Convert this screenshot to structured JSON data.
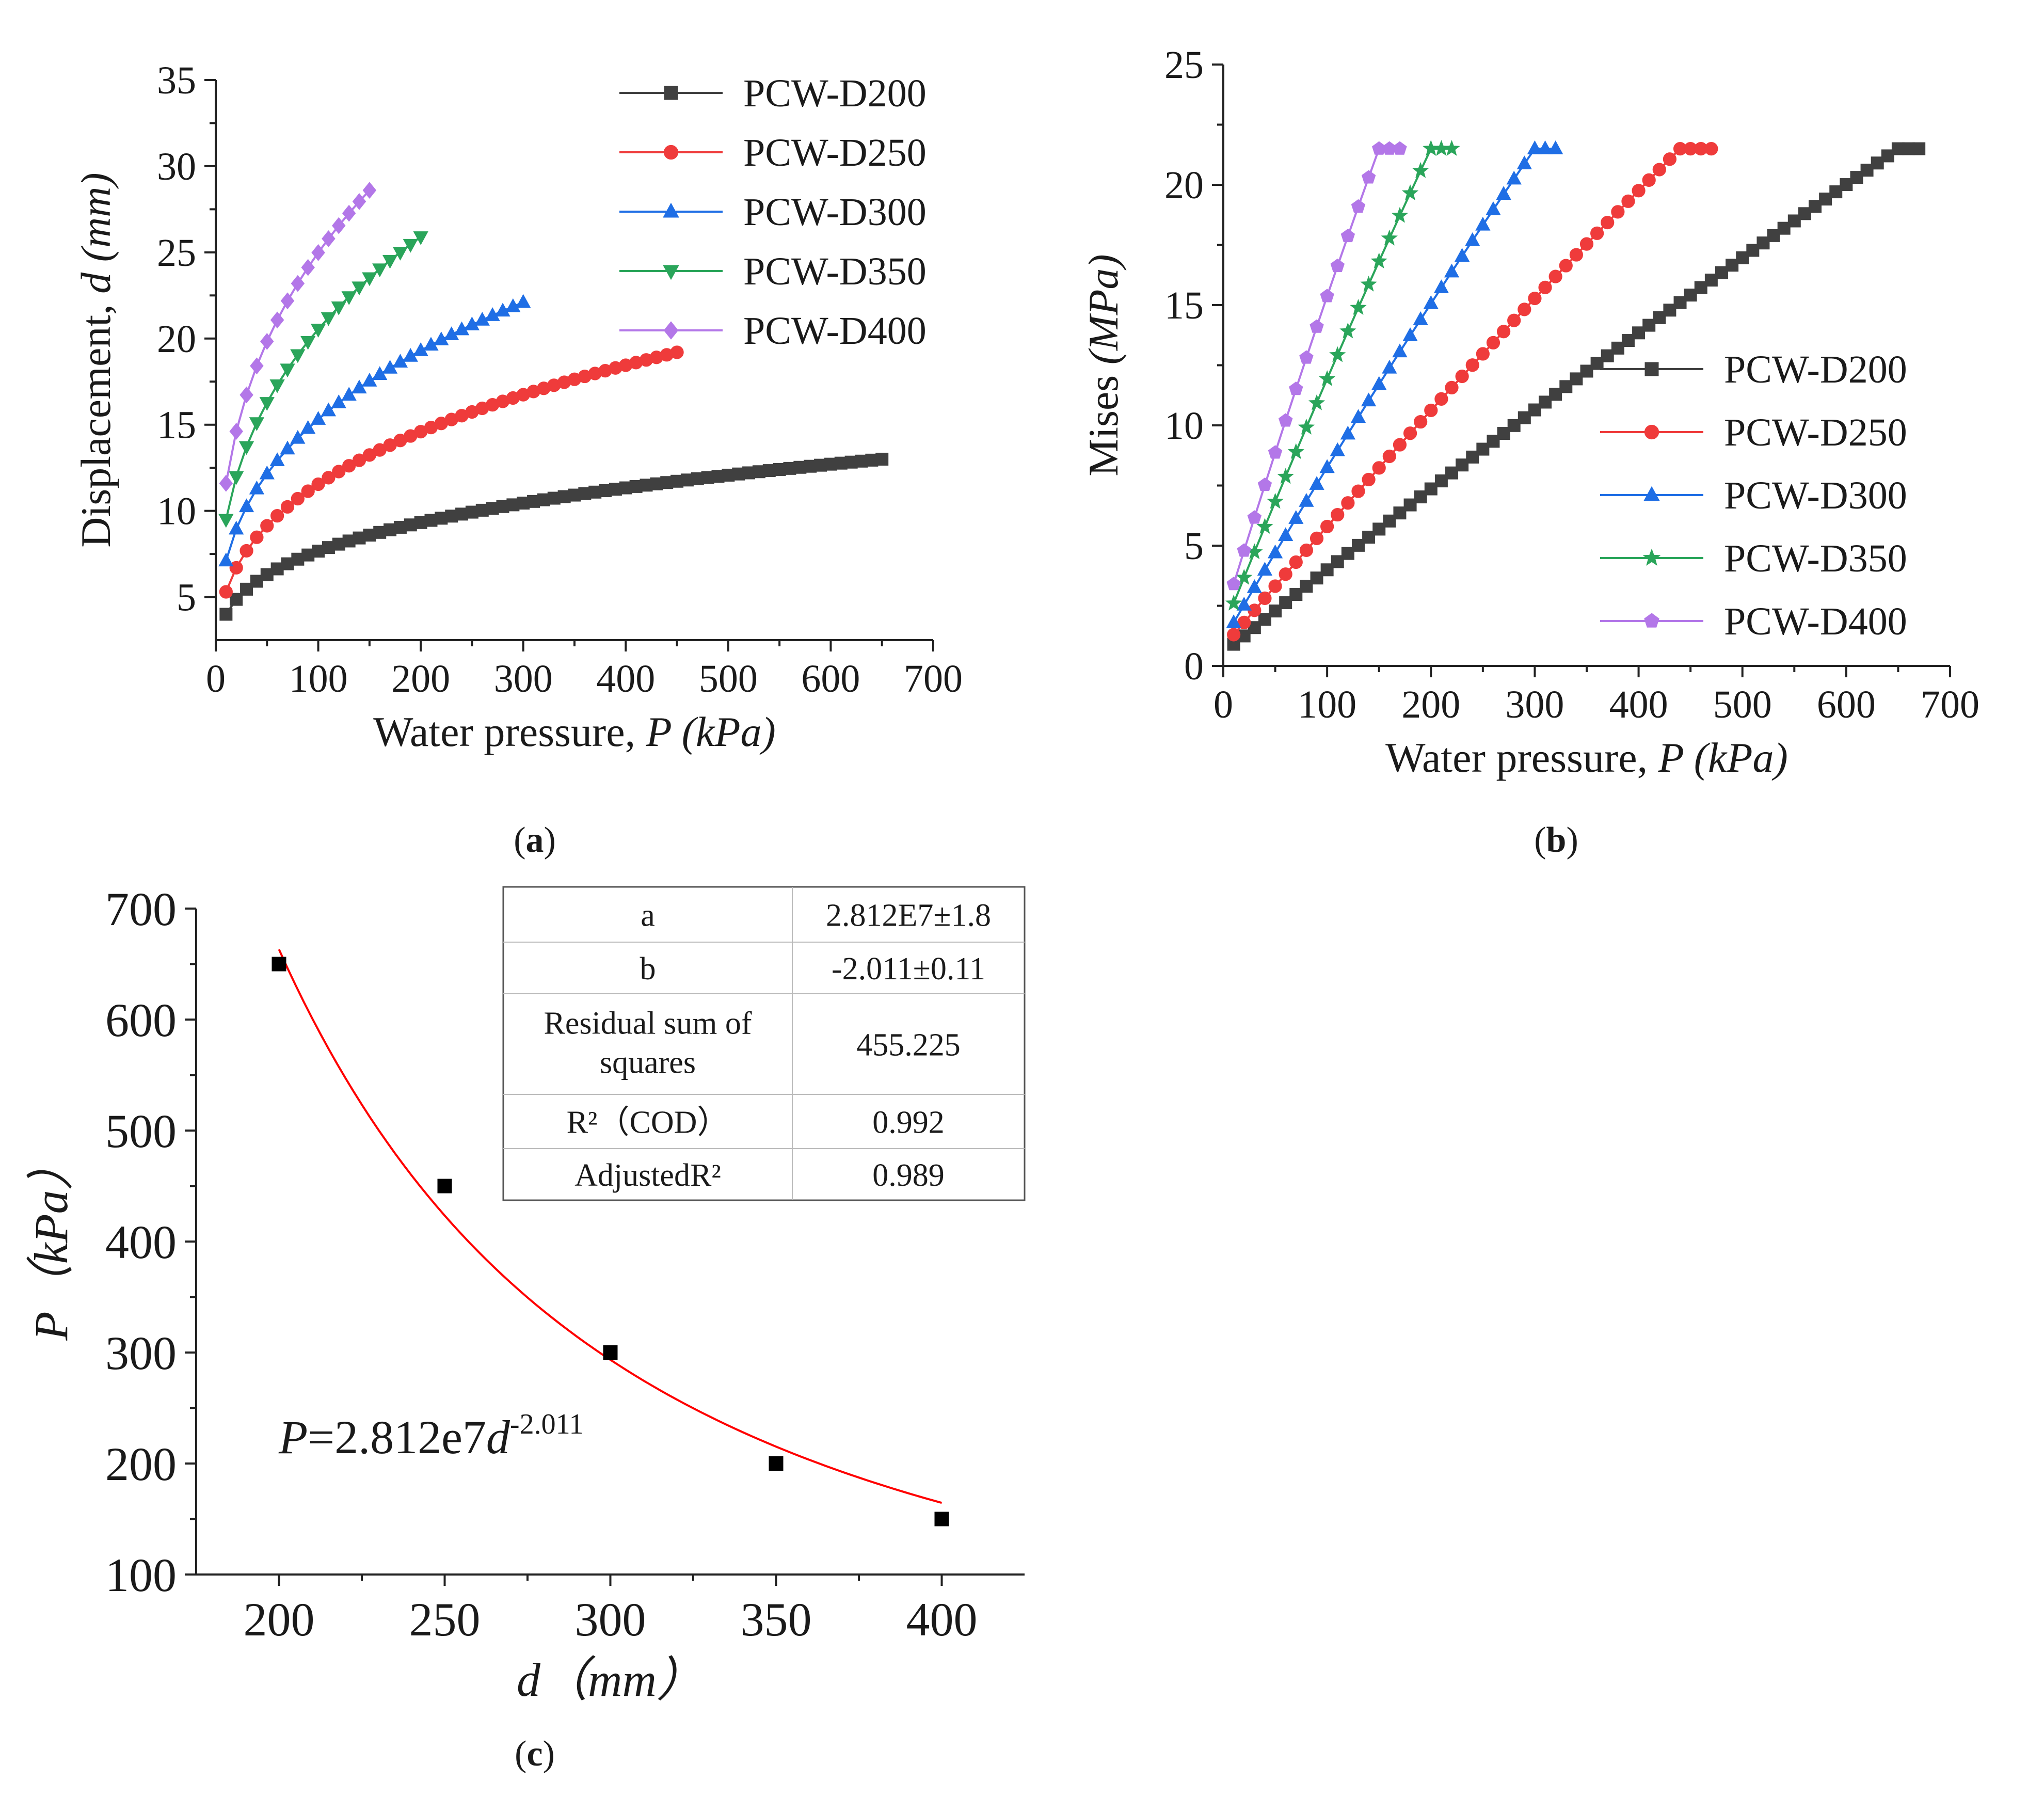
{
  "charts": [
    {
      "id": "a",
      "type": "line",
      "caption_letter": "a",
      "xlabel_prefix": "Water pressure, ",
      "xlabel_var": "P",
      "xlabel_unit": " (kPa)",
      "ylabel_prefix": "Displacement, ",
      "ylabel_var": "d",
      "ylabel_unit": " (mm)",
      "xlim": [
        0,
        700
      ],
      "ylim": [
        2.5,
        35
      ],
      "xticks": [
        0,
        100,
        200,
        300,
        400,
        500,
        600,
        700
      ],
      "yticks": [
        5,
        10,
        15,
        20,
        25,
        30,
        35
      ],
      "legend_position": "top-right",
      "series": [
        {
          "name": "PCW-D200",
          "color": "#404040",
          "marker": "square",
          "model": "power",
          "y0": 4.0,
          "y1": 13.0,
          "xmin": 10,
          "xmax": 650,
          "step": 10
        },
        {
          "name": "PCW-D250",
          "color": "#ef3b3b",
          "marker": "circle",
          "model": "power",
          "y0": 5.3,
          "y1": 19.2,
          "xmin": 10,
          "xmax": 450,
          "step": 10
        },
        {
          "name": "PCW-D300",
          "color": "#1f6ee5",
          "marker": "triangle-up",
          "model": "power",
          "y0": 7.1,
          "y1": 22.1,
          "xmin": 10,
          "xmax": 300,
          "step": 10
        },
        {
          "name": "PCW-D350",
          "color": "#2aa55a",
          "marker": "triangle-down",
          "model": "power",
          "y0": 9.5,
          "y1": 25.9,
          "xmin": 10,
          "xmax": 200,
          "step": 10
        },
        {
          "name": "PCW-D400",
          "color": "#b377e8",
          "marker": "diamond",
          "model": "power",
          "y0": 11.6,
          "y1": 28.6,
          "xmin": 10,
          "xmax": 150,
          "step": 10
        }
      ]
    },
    {
      "id": "b",
      "type": "line",
      "caption_letter": "b",
      "xlabel_prefix": "Water pressure, ",
      "xlabel_var": "P",
      "xlabel_unit": " (kPa)",
      "ylabel_prefix": "Mises ",
      "ylabel_var": "",
      "ylabel_unit": "(MPa)",
      "xlim": [
        0,
        700
      ],
      "ylim": [
        0,
        25
      ],
      "xticks": [
        0,
        100,
        200,
        300,
        400,
        500,
        600,
        700
      ],
      "yticks": [
        0,
        5,
        10,
        15,
        20,
        25
      ],
      "legend_position": "lower-right",
      "series": [
        {
          "name": "PCW-D200",
          "color": "#404040",
          "marker": "square",
          "model": "plateau",
          "y0": 0.9,
          "ypk": 21.5,
          "xmin": 10,
          "xpk": 650,
          "xmax": 670,
          "step": 10
        },
        {
          "name": "PCW-D250",
          "color": "#ef3b3b",
          "marker": "circle",
          "model": "plateau",
          "y0": 1.3,
          "ypk": 21.5,
          "xmin": 10,
          "xpk": 440,
          "xmax": 470,
          "step": 10
        },
        {
          "name": "PCW-D300",
          "color": "#1f6ee5",
          "marker": "triangle-up",
          "model": "plateau",
          "y0": 1.8,
          "ypk": 21.5,
          "xmin": 10,
          "xpk": 300,
          "xmax": 320,
          "step": 10
        },
        {
          "name": "PCW-D350",
          "color": "#2aa55a",
          "marker": "star",
          "model": "plateau",
          "y0": 2.6,
          "ypk": 21.5,
          "xmin": 10,
          "xpk": 200,
          "xmax": 220,
          "step": 10
        },
        {
          "name": "PCW-D400",
          "color": "#b377e8",
          "marker": "pentagon",
          "model": "plateau",
          "y0": 3.4,
          "ypk": 21.5,
          "xmin": 10,
          "xpk": 150,
          "xmax": 170,
          "step": 10
        }
      ]
    },
    {
      "id": "c",
      "type": "scatter",
      "caption_letter": "c",
      "xlabel_var": "d",
      "xlabel_unit": "（mm）",
      "ylabel_var": "P",
      "ylabel_unit": "（kPa）",
      "xlim": [
        175,
        425
      ],
      "ylim": [
        100,
        700
      ],
      "xticks": [
        200,
        250,
        300,
        350,
        400
      ],
      "yticks": [
        100,
        200,
        300,
        400,
        500,
        600,
        700
      ],
      "points": {
        "x": [
          200,
          250,
          300,
          350,
          400
        ],
        "y": [
          650,
          450,
          300,
          200,
          150
        ]
      },
      "fit": {
        "a": 28120000,
        "b": -2.011,
        "x_range": [
          200,
          400
        ],
        "color": "#ff0000"
      },
      "equation": {
        "prefix": "P",
        "body": "=2.812e7",
        "var": "d",
        "exponent": "-2.011"
      },
      "stats_table": [
        {
          "label": "a",
          "value": "2.812E7±1.8"
        },
        {
          "label": "b",
          "value": "-2.011±0.11"
        },
        {
          "label": "Residual sum of squares",
          "label_lines": [
            "Residual sum of",
            "squares"
          ],
          "value": "455.225"
        },
        {
          "label": "R²（COD）",
          "value": "0.992"
        },
        {
          "label": "AdjustedR²",
          "value": "0.989"
        }
      ]
    }
  ]
}
